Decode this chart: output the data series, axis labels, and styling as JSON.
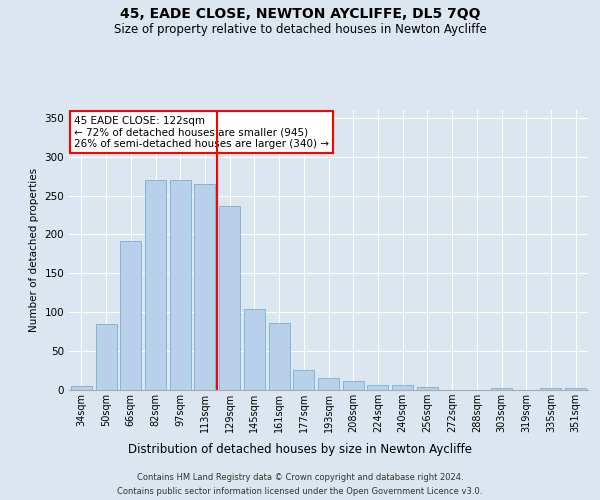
{
  "title1": "45, EADE CLOSE, NEWTON AYCLIFFE, DL5 7QQ",
  "title2": "Size of property relative to detached houses in Newton Aycliffe",
  "xlabel": "Distribution of detached houses by size in Newton Aycliffe",
  "ylabel": "Number of detached properties",
  "categories": [
    "34sqm",
    "50sqm",
    "66sqm",
    "82sqm",
    "97sqm",
    "113sqm",
    "129sqm",
    "145sqm",
    "161sqm",
    "177sqm",
    "193sqm",
    "208sqm",
    "224sqm",
    "240sqm",
    "256sqm",
    "272sqm",
    "288sqm",
    "303sqm",
    "319sqm",
    "335sqm",
    "351sqm"
  ],
  "values": [
    5,
    85,
    192,
    270,
    270,
    265,
    237,
    104,
    86,
    26,
    16,
    12,
    7,
    6,
    4,
    0,
    0,
    2,
    0,
    2,
    3
  ],
  "bar_color": "#b8d0ea",
  "bar_edge_color": "#7aafd4",
  "vline_color": "red",
  "annotation_text": "45 EADE CLOSE: 122sqm\n← 72% of detached houses are smaller (945)\n26% of semi-detached houses are larger (340) →",
  "annotation_box_color": "white",
  "annotation_box_edge": "red",
  "ylim": [
    0,
    360
  ],
  "yticks": [
    0,
    50,
    100,
    150,
    200,
    250,
    300,
    350
  ],
  "footer1": "Contains HM Land Registry data © Crown copyright and database right 2024.",
  "footer2": "Contains public sector information licensed under the Open Government Licence v3.0.",
  "bg_color": "#dce6f0",
  "plot_bg_color": "#dce6f0"
}
